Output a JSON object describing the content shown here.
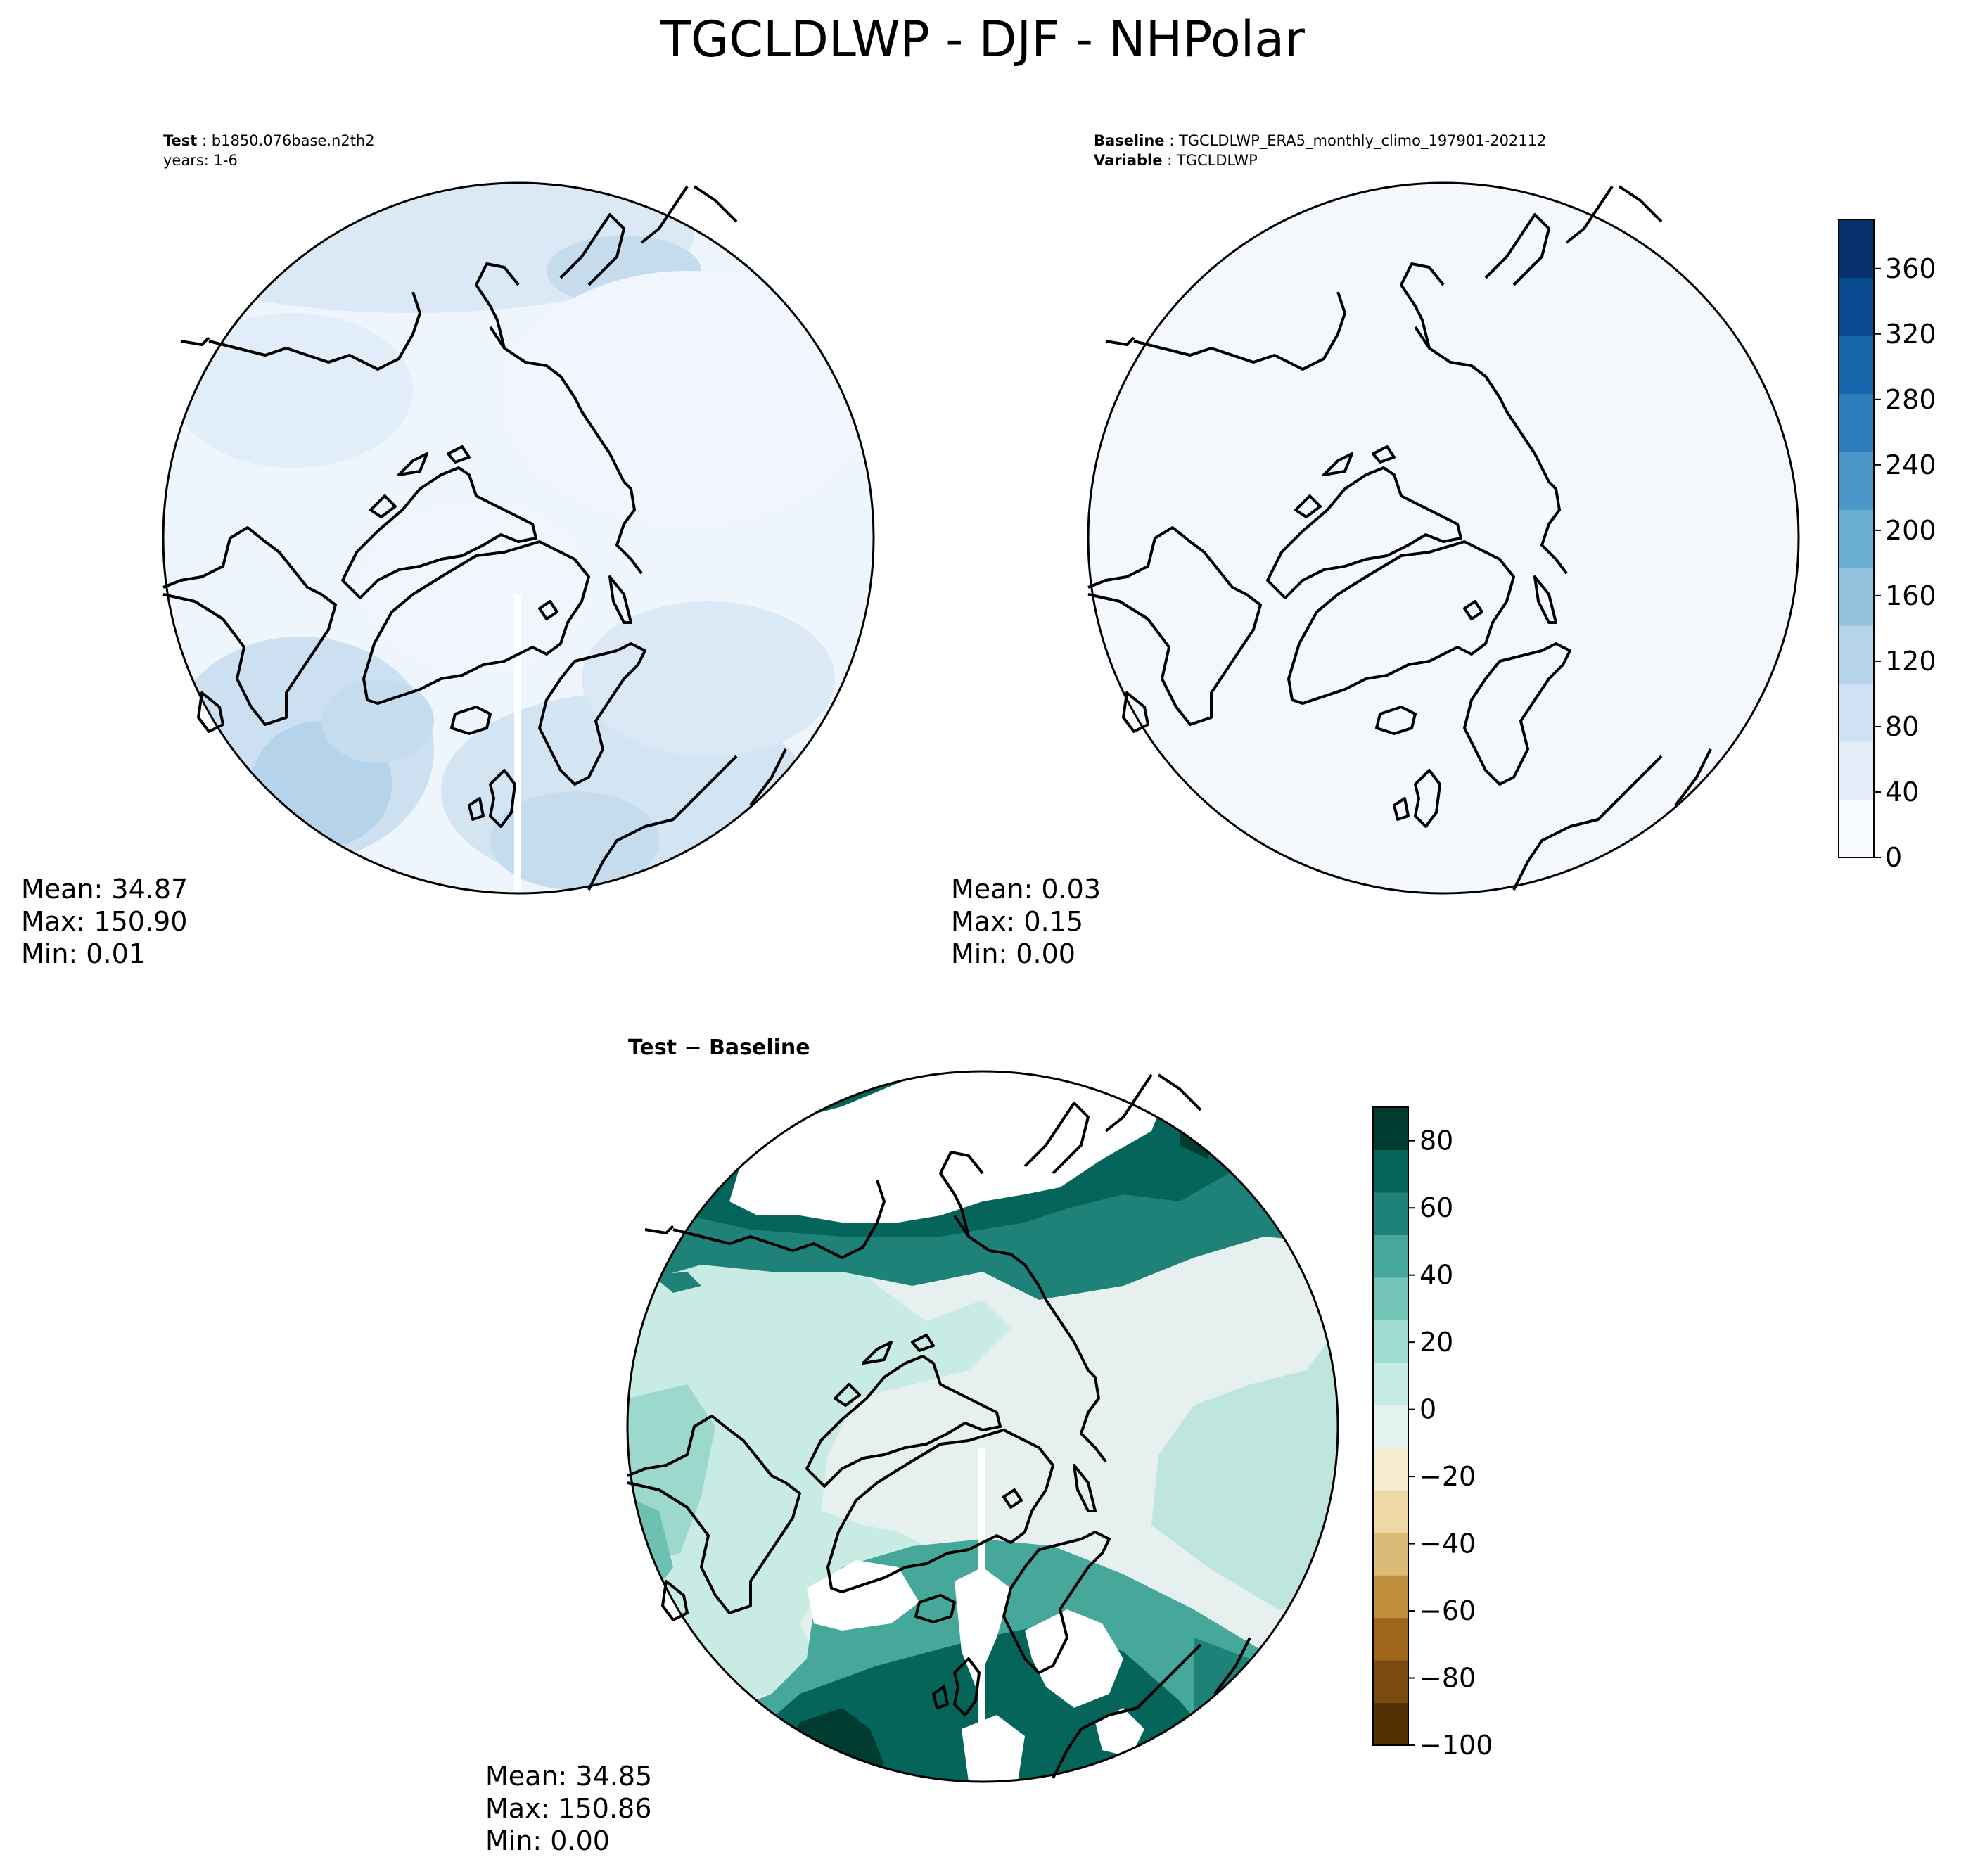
{
  "figure": {
    "title": "TGCLDLWP - DJF - NHPolar"
  },
  "panels": {
    "test": {
      "label_key": "Test",
      "label_value": "b1850.076base.n2th2",
      "line2": "years: 1-6",
      "stats": {
        "mean": "Mean: 34.87",
        "max": "Max: 150.90",
        "min": "Min:  0.01"
      }
    },
    "baseline": {
      "label_key": "Baseline",
      "label_value": "TGCLDLWP_ERA5_monthly_climo_197901-202112",
      "line2_key": "Variable",
      "line2_value": "TGCLDLWP",
      "stats": {
        "mean": "Mean:  0.03",
        "max": "Max:  0.15",
        "min": "Min:  0.00"
      }
    },
    "diff": {
      "title": "Test − Baseline",
      "stats": {
        "mean": "Mean: 34.85",
        "max": "Max: 150.86",
        "min": "Min:  0.00"
      }
    }
  },
  "colors": {
    "blues": [
      "#f7fbff",
      "#e3eef9",
      "#cfe1f2",
      "#b5d4e9",
      "#93c3df",
      "#6daed5",
      "#4b97c9",
      "#2f7ebc",
      "#1864aa",
      "#0a4a90",
      "#08306b"
    ],
    "brbg": [
      "#543005",
      "#7b4a0e",
      "#a0661c",
      "#c1903f",
      "#dbbb75",
      "#eed8a6",
      "#f6ecd2",
      "#e3f2ef",
      "#c6ebe3",
      "#a2dbd2",
      "#74c5b8",
      "#46a79b",
      "#1f8279",
      "#06655a",
      "#003c30"
    ],
    "coastline": "#000000"
  },
  "chart_data": [
    {
      "type": "heatmap",
      "name": "test",
      "projection": "north polar stereographic",
      "colormap": "Blues",
      "range": [
        0,
        390
      ],
      "mean": 34.87,
      "max": 150.9,
      "min": 0.01
    },
    {
      "type": "heatmap",
      "name": "baseline",
      "projection": "north polar stereographic",
      "colormap": "Blues",
      "range": [
        0,
        390
      ],
      "mean": 0.03,
      "max": 0.15,
      "min": 0.0,
      "colorbar": {
        "ticks": [
          0,
          40,
          80,
          120,
          160,
          200,
          240,
          280,
          320,
          360
        ],
        "tick_labels": [
          "0",
          "40",
          "80",
          "120",
          "160",
          "200",
          "240",
          "280",
          "320",
          "360"
        ],
        "ylim": [
          0,
          390
        ]
      }
    },
    {
      "type": "heatmap",
      "name": "test-baseline",
      "projection": "north polar stereographic",
      "colormap": "BrBG",
      "range": [
        -100,
        90
      ],
      "mean": 34.85,
      "max": 150.86,
      "min": 0.0,
      "colorbar": {
        "ticks": [
          -100,
          -80,
          -60,
          -40,
          -20,
          0,
          20,
          40,
          60,
          80
        ],
        "tick_labels": [
          "−100",
          "−80",
          "−60",
          "−40",
          "−20",
          "0",
          "20",
          "40",
          "60",
          "80"
        ],
        "ylim": [
          -100,
          90
        ]
      }
    }
  ]
}
